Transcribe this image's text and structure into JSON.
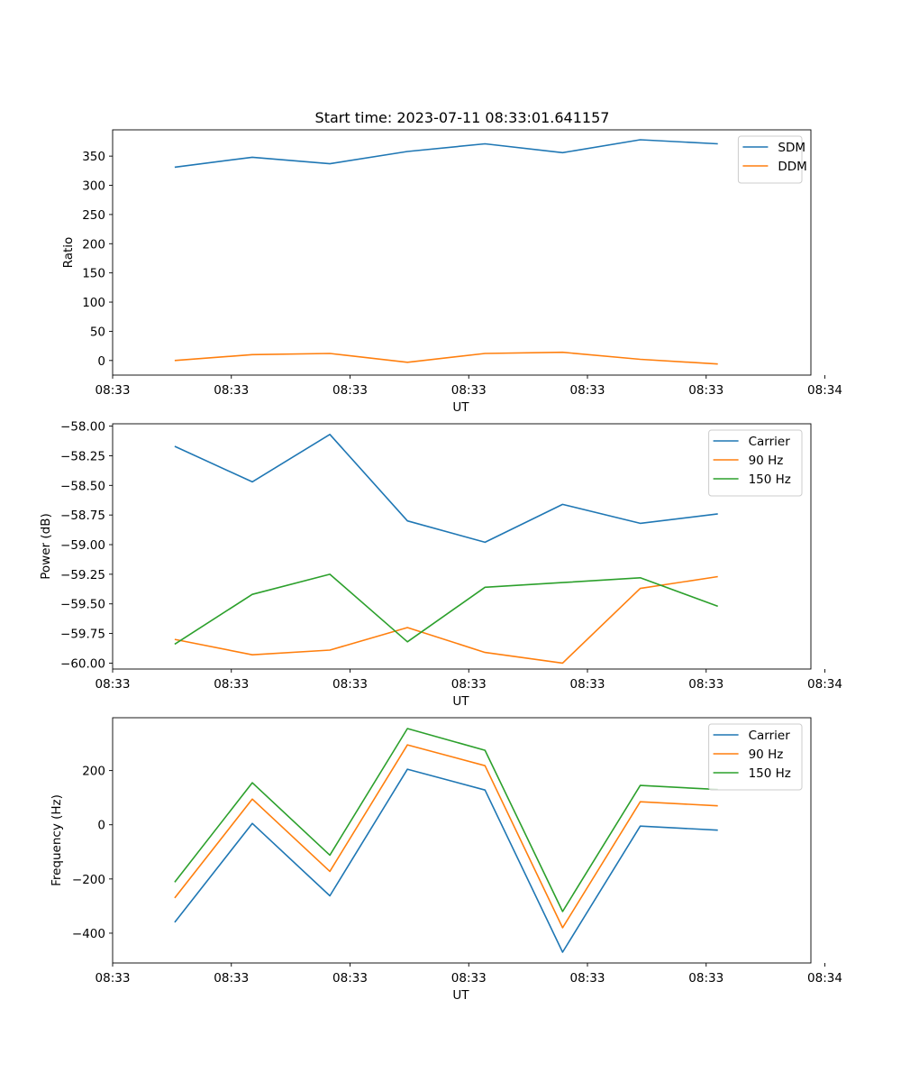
{
  "figure_title": "Start time: 2023-07-11 08:33:01.641157",
  "colors": {
    "blue": "#1f77b4",
    "orange": "#ff7f0e",
    "green": "#2ca02c"
  },
  "chart_data": [
    {
      "type": "line",
      "title": "Start time: 2023-07-11 08:33:01.641157",
      "xlabel": "UT",
      "ylabel": "Ratio",
      "x": [
        1,
        2,
        3,
        4,
        5,
        6,
        7,
        8
      ],
      "xlim": [
        0.2,
        9.2
      ],
      "x_ticks": [
        0.2,
        1.73,
        3.26,
        4.79,
        6.32,
        7.85,
        9.38
      ],
      "x_tick_labels": [
        "08:33",
        "08:33",
        "08:33",
        "08:33",
        "08:33",
        "08:33",
        "08:34"
      ],
      "ylim": [
        -25,
        395
      ],
      "y_ticks": [
        0,
        50,
        100,
        150,
        200,
        250,
        300,
        350
      ],
      "y_tick_labels": [
        "0",
        "50",
        "100",
        "150",
        "200",
        "250",
        "300",
        "350"
      ],
      "legend_position": "top-right",
      "series": [
        {
          "name": "SDM",
          "color": "#1f77b4",
          "values": [
            331,
            348,
            337,
            358,
            371,
            356,
            378,
            371
          ]
        },
        {
          "name": "DDM",
          "color": "#ff7f0e",
          "values": [
            0,
            10,
            12,
            -3,
            12,
            14,
            2,
            -6
          ]
        }
      ]
    },
    {
      "type": "line",
      "title": "",
      "xlabel": "UT",
      "ylabel": "Power (dB)",
      "x": [
        1,
        2,
        3,
        4,
        5,
        6,
        7,
        8
      ],
      "xlim": [
        0.2,
        9.2
      ],
      "x_ticks": [
        0.2,
        1.73,
        3.26,
        4.79,
        6.32,
        7.85,
        9.38
      ],
      "x_tick_labels": [
        "08:33",
        "08:33",
        "08:33",
        "08:33",
        "08:33",
        "08:33",
        "08:34"
      ],
      "ylim": [
        -60.05,
        -57.98
      ],
      "y_ticks": [
        -58.0,
        -58.25,
        -58.5,
        -58.75,
        -59.0,
        -59.25,
        -59.5,
        -59.75,
        -60.0
      ],
      "y_tick_labels": [
        "−58.00",
        "−58.25",
        "−58.50",
        "−58.75",
        "−59.00",
        "−59.25",
        "−59.50",
        "−59.75",
        "−60.00"
      ],
      "legend_position": "top-right",
      "series": [
        {
          "name": "Carrier",
          "color": "#1f77b4",
          "values": [
            -58.17,
            -58.47,
            -58.07,
            -58.8,
            -58.98,
            -58.66,
            -58.82,
            -58.74
          ]
        },
        {
          "name": "90 Hz",
          "color": "#ff7f0e",
          "values": [
            -59.8,
            -59.93,
            -59.89,
            -59.7,
            -59.91,
            -60.0,
            -59.37,
            -59.27
          ]
        },
        {
          "name": "150 Hz",
          "color": "#2ca02c",
          "values": [
            -59.84,
            -59.42,
            -59.25,
            -59.82,
            -59.36,
            -59.32,
            -59.28,
            -59.52
          ]
        }
      ]
    },
    {
      "type": "line",
      "title": "",
      "xlabel": "UT",
      "ylabel": "Frequency (Hz)",
      "x": [
        1,
        2,
        3,
        4,
        5,
        6,
        7,
        8
      ],
      "xlim": [
        0.2,
        9.2
      ],
      "x_ticks": [
        0.2,
        1.73,
        3.26,
        4.79,
        6.32,
        7.85,
        9.38
      ],
      "x_tick_labels": [
        "08:33",
        "08:33",
        "08:33",
        "08:33",
        "08:33",
        "08:33",
        "08:34"
      ],
      "ylim": [
        -510,
        395
      ],
      "y_ticks": [
        -400,
        -200,
        0,
        200
      ],
      "y_tick_labels": [
        "−400",
        "−200",
        "0",
        "200"
      ],
      "legend_position": "top-right",
      "series": [
        {
          "name": "Carrier",
          "color": "#1f77b4",
          "values": [
            -360,
            5,
            -262,
            205,
            128,
            -470,
            -5,
            -20
          ]
        },
        {
          "name": "90 Hz",
          "color": "#ff7f0e",
          "values": [
            -270,
            95,
            -172,
            295,
            218,
            -380,
            85,
            70
          ]
        },
        {
          "name": "150 Hz",
          "color": "#2ca02c",
          "values": [
            -212,
            155,
            -112,
            355,
            275,
            -320,
            145,
            130
          ]
        }
      ]
    }
  ]
}
